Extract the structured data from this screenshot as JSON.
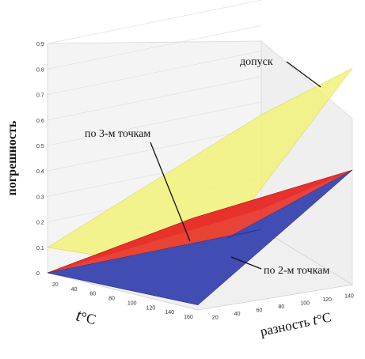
{
  "chart_data": {
    "type": "surface3d",
    "zlabel": "погрешность",
    "xlabel_base": "t",
    "xlabel_unit": "°C",
    "ylabel_prefix": "разность ",
    "ylabel_t": "t",
    "ylabel_unit": "°C",
    "z_ticks": [
      "0",
      "0.1",
      "0.2",
      "0.3",
      "0.4",
      "0.5",
      "0.6",
      "0.7",
      "0.8",
      "0.9"
    ],
    "x_ticks": [
      "20",
      "40",
      "60",
      "80",
      "100",
      "120",
      "140",
      "160"
    ],
    "y_ticks": [
      "20",
      "40",
      "60",
      "80",
      "100",
      "120",
      "140"
    ],
    "zlim": [
      0,
      0.9
    ],
    "series": [
      {
        "name": "допуск",
        "color": "#f2f27a",
        "corners_z": [
          0.1,
          0.15,
          0.85,
          0.45
        ]
      },
      {
        "name": "по 3-м точкам",
        "color": "#e8302a",
        "corners_z": [
          0.0,
          0.02,
          0.45,
          0.08
        ],
        "peak_z": 0.25
      },
      {
        "name": "по 2-м точкам",
        "color": "#2a4fc4",
        "corners_z": [
          0.0,
          0.02,
          0.45,
          0.0
        ]
      }
    ],
    "annotations": [
      {
        "text": "допуск"
      },
      {
        "text": "по 3-м точкам"
      },
      {
        "text": "по 2-м точкам"
      }
    ]
  }
}
